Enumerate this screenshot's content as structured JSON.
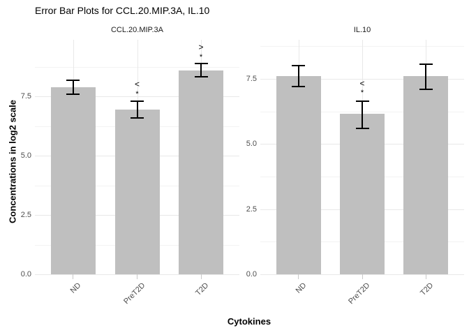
{
  "chart_data": {
    "type": "bar",
    "title": "Error Bar Plots for CCL.20.MIP.3A, IL.10",
    "xlabel": "Cytokines",
    "ylabel": "Concentrations in log2 scale",
    "categories": [
      "ND",
      "PreT2D",
      "T2D"
    ],
    "legend": "none",
    "grid": true,
    "yticks": [
      {
        "v": 0.0,
        "label": "0.0"
      },
      {
        "v": 2.5,
        "label": "2.5"
      },
      {
        "v": 5.0,
        "label": "5.0"
      },
      {
        "v": 7.5,
        "label": "7.5"
      }
    ],
    "yticks_minor": [
      1.25,
      3.75,
      6.25,
      8.75
    ],
    "colors": {
      "bar_fill": "#bfbfbf",
      "error_bar": "#000000",
      "grid_major": "#e8e8e8",
      "grid_minor": "#f3f3f3",
      "tick_mark": "#c9c9c9",
      "tick_text": "#4d4d4d",
      "title_text": "#000000"
    },
    "panels": [
      {
        "facet_label": "CCL.20.MIP.3A",
        "ylim": [
          0,
          9.9
        ],
        "bars": [
          {
            "category": "ND",
            "mean": 7.9,
            "lower": 7.6,
            "upper": 8.2
          },
          {
            "category": "PreT2D",
            "mean": 6.95,
            "lower": 6.6,
            "upper": 7.3,
            "annotation": {
              "symbol": "<",
              "star": "*",
              "symbol_y": 8.0,
              "star_y": 7.62
            }
          },
          {
            "category": "T2D",
            "mean": 8.6,
            "lower": 8.35,
            "upper": 8.9,
            "annotation": {
              "symbol": ">",
              "star": "*",
              "symbol_y": 9.57,
              "star_y": 9.2
            }
          }
        ]
      },
      {
        "facet_label": "IL.10",
        "ylim": [
          0,
          9.0
        ],
        "bars": [
          {
            "category": "ND",
            "mean": 7.6,
            "lower": 7.2,
            "upper": 8.0
          },
          {
            "category": "PreT2D",
            "mean": 6.15,
            "lower": 5.6,
            "upper": 6.65,
            "annotation": {
              "symbol": "<",
              "star": "*",
              "symbol_y": 7.32,
              "star_y": 7.0
            }
          },
          {
            "category": "T2D",
            "mean": 7.6,
            "lower": 7.1,
            "upper": 8.05
          }
        ]
      }
    ]
  }
}
